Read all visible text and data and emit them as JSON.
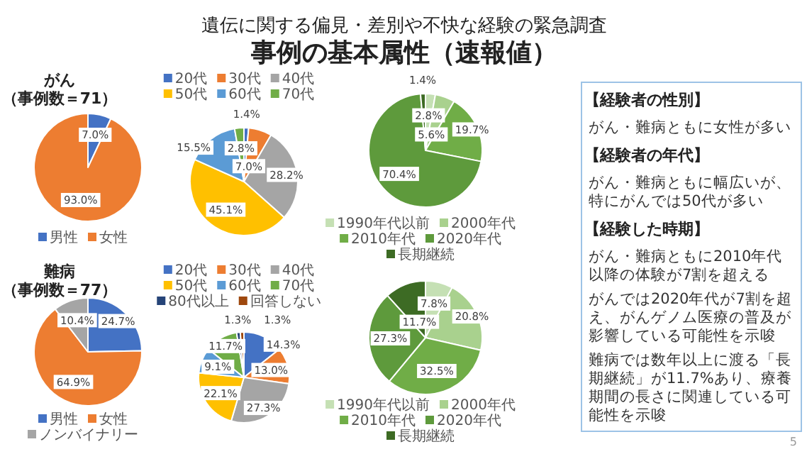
{
  "chart_data": [
    {
      "type": "other",
      "title": "遺伝に関する偏見・差別や不快な経験の緊急調査",
      "subtitle": "事例の基本属性（速報値）",
      "annotations": [
        "5"
      ]
    },
    {
      "type": "pie",
      "title": "がん",
      "subtitle": "（事例数＝71）",
      "categories": [
        "男性",
        "女性"
      ],
      "values": [
        7.0,
        93.0
      ],
      "colors": [
        "#4472c4",
        "#ed7d31"
      ],
      "value_labels": [
        "7.0%",
        "93.0%"
      ],
      "legend": "bottom"
    },
    {
      "type": "pie",
      "categories": [
        "20代",
        "30代",
        "40代",
        "50代",
        "60代",
        "70代"
      ],
      "values": [
        1.4,
        7.0,
        28.2,
        45.1,
        15.5,
        2.8
      ],
      "colors": [
        "#4472c4",
        "#ed7d31",
        "#a5a5a5",
        "#ffc000",
        "#5b9bd5",
        "#70ad47"
      ],
      "value_labels": [
        "1.4%",
        "7.0%",
        "28.2%",
        "45.1%",
        "15.5%",
        "2.8%"
      ],
      "legend": "top"
    },
    {
      "type": "pie",
      "categories": [
        "1990年代以前",
        "2000年代",
        "2010年代",
        "2020年代",
        "長期継続"
      ],
      "values": [
        2.8,
        5.6,
        19.7,
        70.4,
        1.4
      ],
      "colors": [
        "#c5e0b4",
        "#a9d18e",
        "#70ad47",
        "#5e9a3c",
        "#3d6b24"
      ],
      "value_labels": [
        "2.8%",
        "5.6%",
        "19.7%",
        "70.4%",
        "1.4%"
      ],
      "legend": "bottom"
    },
    {
      "type": "pie",
      "title": "難病",
      "subtitle": "（事例数＝77）",
      "categories": [
        "男性",
        "女性",
        "ノンバイナリー"
      ],
      "values": [
        24.7,
        64.9,
        10.4
      ],
      "colors": [
        "#4472c4",
        "#ed7d31",
        "#a5a5a5"
      ],
      "value_labels": [
        "24.7%",
        "64.9%",
        "10.4%"
      ],
      "legend": "bottom"
    },
    {
      "type": "pie",
      "categories": [
        "20代",
        "30代",
        "40代",
        "50代",
        "60代",
        "70代",
        "80代以上",
        "回答しない"
      ],
      "values": [
        14.3,
        13.0,
        27.3,
        22.1,
        9.1,
        11.7,
        1.3,
        1.3
      ],
      "colors": [
        "#4472c4",
        "#ed7d31",
        "#a5a5a5",
        "#ffc000",
        "#5b9bd5",
        "#70ad47",
        "#264478",
        "#9e480e"
      ],
      "value_labels": [
        "14.3%",
        "13.0%",
        "27.3%",
        "22.1%",
        "9.1%",
        "11.7%",
        "1.3%",
        "1.3%"
      ],
      "legend": "top"
    },
    {
      "type": "pie",
      "categories": [
        "1990年代以前",
        "2000年代",
        "2010年代",
        "2020年代",
        "長期継続"
      ],
      "values": [
        7.8,
        20.8,
        32.5,
        27.3,
        11.7
      ],
      "colors": [
        "#c5e0b4",
        "#a9d18e",
        "#70ad47",
        "#5e9a3c",
        "#3d6b24"
      ],
      "value_labels": [
        "7.8%",
        "20.8%",
        "32.5%",
        "27.3%",
        "11.7%"
      ],
      "legend": "bottom"
    },
    {
      "type": "other",
      "title": "【経験者の性別】",
      "annotations": [
        "がん・難病ともに女性が多い"
      ]
    },
    {
      "type": "other",
      "title": "【経験者の年代】",
      "annotations": [
        "がん・難病ともに幅広いが、特にがんでは50代が多い"
      ]
    },
    {
      "type": "other",
      "title": "【経験した時期】",
      "annotations": [
        "がん・難病ともに2010年代以降の体験が7割を超える",
        "がんでは2020年代が7割を超え、がんゲノム医療の普及が影響している可能性を示唆",
        "難病では数年以上に渡る「長期継続」が11.7%あり、療養期間の長さに関連している可能性を示唆"
      ]
    }
  ]
}
